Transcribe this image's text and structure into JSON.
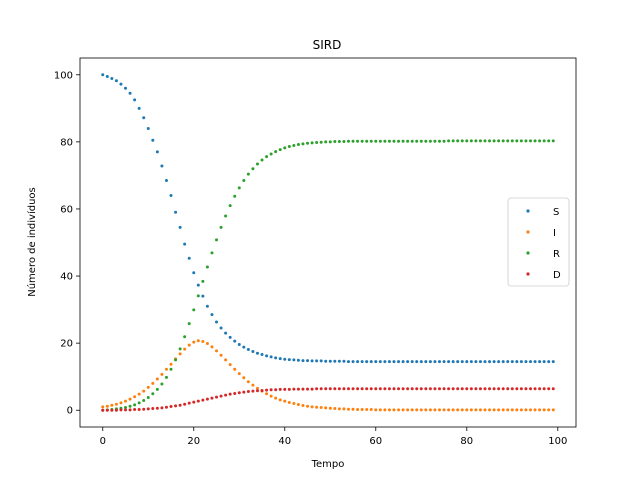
{
  "chart_data": {
    "type": "scatter",
    "title": "SIRD",
    "xlabel": "Tempo",
    "ylabel": "Número de indivíduos",
    "xlim": [
      -5,
      104
    ],
    "ylim": [
      -5,
      105
    ],
    "xticks": [
      0,
      20,
      40,
      60,
      80,
      100
    ],
    "yticks": [
      0,
      20,
      40,
      60,
      80,
      100
    ],
    "grid": false,
    "legend_position": "center-right",
    "x": [
      0,
      1,
      2,
      3,
      4,
      5,
      6,
      7,
      8,
      9,
      10,
      11,
      12,
      13,
      14,
      15,
      16,
      17,
      18,
      19,
      20,
      21,
      22,
      23,
      24,
      25,
      26,
      27,
      28,
      29,
      30,
      31,
      32,
      33,
      34,
      35,
      36,
      37,
      38,
      39,
      40,
      41,
      42,
      43,
      44,
      45,
      46,
      47,
      48,
      49,
      50,
      51,
      52,
      53,
      54,
      55,
      56,
      57,
      58,
      59,
      60,
      61,
      62,
      63,
      64,
      65,
      66,
      67,
      68,
      69,
      70,
      71,
      72,
      73,
      74,
      75,
      76,
      77,
      78,
      79,
      80,
      81,
      82,
      83,
      84,
      85,
      86,
      87,
      88,
      89,
      90,
      91,
      92,
      93,
      94,
      95,
      96,
      97,
      98,
      99
    ],
    "series": [
      {
        "name": "S",
        "color": "#1f77b4",
        "values": [
          100,
          99.5,
          98.9,
          98.2,
          97.2,
          96,
          94.5,
          92.5,
          90,
          87.2,
          84,
          80.5,
          77,
          72.8,
          68.5,
          64,
          59,
          54.5,
          49.5,
          45.3,
          41,
          37.3,
          34,
          31,
          28.5,
          26.3,
          24.5,
          23,
          21.7,
          20.6,
          19.6,
          18.8,
          18.1,
          17.5,
          17,
          16.6,
          16.2,
          15.9,
          15.6,
          15.4,
          15.2,
          15.1,
          15,
          14.9,
          14.8,
          14.8,
          14.7,
          14.7,
          14.7,
          14.6,
          14.6,
          14.6,
          14.6,
          14.6,
          14.5,
          14.5,
          14.5,
          14.5,
          14.5,
          14.5,
          14.5,
          14.5,
          14.5,
          14.5,
          14.5,
          14.5,
          14.5,
          14.5,
          14.5,
          14.5,
          14.5,
          14.5,
          14.5,
          14.5,
          14.5,
          14.5,
          14.5,
          14.5,
          14.5,
          14.5,
          14.5,
          14.5,
          14.5,
          14.5,
          14.5,
          14.5,
          14.5,
          14.5,
          14.5,
          14.5,
          14.5,
          14.5,
          14.5,
          14.5,
          14.5,
          14.5,
          14.5,
          14.5,
          14.5,
          14.5
        ]
      },
      {
        "name": "I",
        "color": "#ff7f0e",
        "values": [
          1,
          1.2,
          1.5,
          1.8,
          2.2,
          2.7,
          3.3,
          4,
          4.8,
          5.7,
          6.8,
          8,
          9.3,
          10.7,
          12.2,
          13.7,
          15.3,
          16.8,
          18.2,
          19.4,
          20.3,
          20.7,
          20.5,
          19.9,
          18.9,
          17.7,
          16.4,
          15,
          13.6,
          12.2,
          10.9,
          9.7,
          8.5,
          7.5,
          6.5,
          5.7,
          4.9,
          4.2,
          3.6,
          3.1,
          2.7,
          2.3,
          2,
          1.7,
          1.4,
          1.2,
          1,
          0.9,
          0.8,
          0.7,
          0.6,
          0.5,
          0.4,
          0.4,
          0.3,
          0.3,
          0.2,
          0.2,
          0.2,
          0.2,
          0.1,
          0.1,
          0.1,
          0.1,
          0.1,
          0.1,
          0.1,
          0.1,
          0.1,
          0.1,
          0.1,
          0.1,
          0.1,
          0.1,
          0.1,
          0.1,
          0.1,
          0.1,
          0.1,
          0.1,
          0.1,
          0.1,
          0.1,
          0.1,
          0.1,
          0.1,
          0.1,
          0.1,
          0.1,
          0.1,
          0.1,
          0.1,
          0.1,
          0.1,
          0.1,
          0.1,
          0.1,
          0.1,
          0.1,
          0.1
        ]
      },
      {
        "name": "R",
        "color": "#2ca02c",
        "values": [
          0,
          0.1,
          0.2,
          0.4,
          0.6,
          0.8,
          1.2,
          1.6,
          2.2,
          2.9,
          3.8,
          4.9,
          6.2,
          7.8,
          9.8,
          12.2,
          15,
          18.3,
          21.9,
          25.8,
          29.9,
          34.1,
          38.4,
          42.7,
          46.9,
          50.8,
          54.5,
          57.9,
          61,
          63.8,
          66.3,
          68.5,
          70.4,
          72,
          73.4,
          74.6,
          75.6,
          76.4,
          77.1,
          77.7,
          78.2,
          78.6,
          78.9,
          79.2,
          79.4,
          79.6,
          79.7,
          79.8,
          79.9,
          80,
          80,
          80.1,
          80.1,
          80.1,
          80.2,
          80.2,
          80.2,
          80.2,
          80.2,
          80.2,
          80.2,
          80.2,
          80.2,
          80.2,
          80.2,
          80.2,
          80.2,
          80.2,
          80.2,
          80.2,
          80.2,
          80.2,
          80.2,
          80.2,
          80.2,
          80.2,
          80.3,
          80.3,
          80.3,
          80.3,
          80.3,
          80.3,
          80.3,
          80.3,
          80.3,
          80.3,
          80.3,
          80.3,
          80.3,
          80.3,
          80.3,
          80.3,
          80.3,
          80.3,
          80.3,
          80.3,
          80.3,
          80.3,
          80.3,
          80.3
        ]
      },
      {
        "name": "D",
        "color": "#d62728",
        "values": [
          0,
          0,
          0,
          0,
          0.1,
          0.1,
          0.1,
          0.2,
          0.2,
          0.3,
          0.4,
          0.5,
          0.6,
          0.7,
          0.9,
          1.1,
          1.3,
          1.5,
          1.8,
          2.1,
          2.4,
          2.7,
          3,
          3.3,
          3.6,
          3.9,
          4.2,
          4.5,
          4.8,
          5,
          5.2,
          5.4,
          5.6,
          5.7,
          5.8,
          5.9,
          6,
          6.1,
          6.1,
          6.2,
          6.2,
          6.2,
          6.3,
          6.3,
          6.3,
          6.3,
          6.3,
          6.4,
          6.4,
          6.4,
          6.4,
          6.4,
          6.4,
          6.4,
          6.4,
          6.4,
          6.4,
          6.4,
          6.4,
          6.4,
          6.4,
          6.4,
          6.4,
          6.4,
          6.4,
          6.4,
          6.4,
          6.4,
          6.4,
          6.4,
          6.4,
          6.4,
          6.4,
          6.4,
          6.4,
          6.4,
          6.4,
          6.4,
          6.4,
          6.4,
          6.4,
          6.4,
          6.4,
          6.4,
          6.4,
          6.4,
          6.4,
          6.4,
          6.4,
          6.4,
          6.4,
          6.4,
          6.4,
          6.4,
          6.4,
          6.4,
          6.4,
          6.4,
          6.4,
          6.4
        ]
      }
    ]
  }
}
